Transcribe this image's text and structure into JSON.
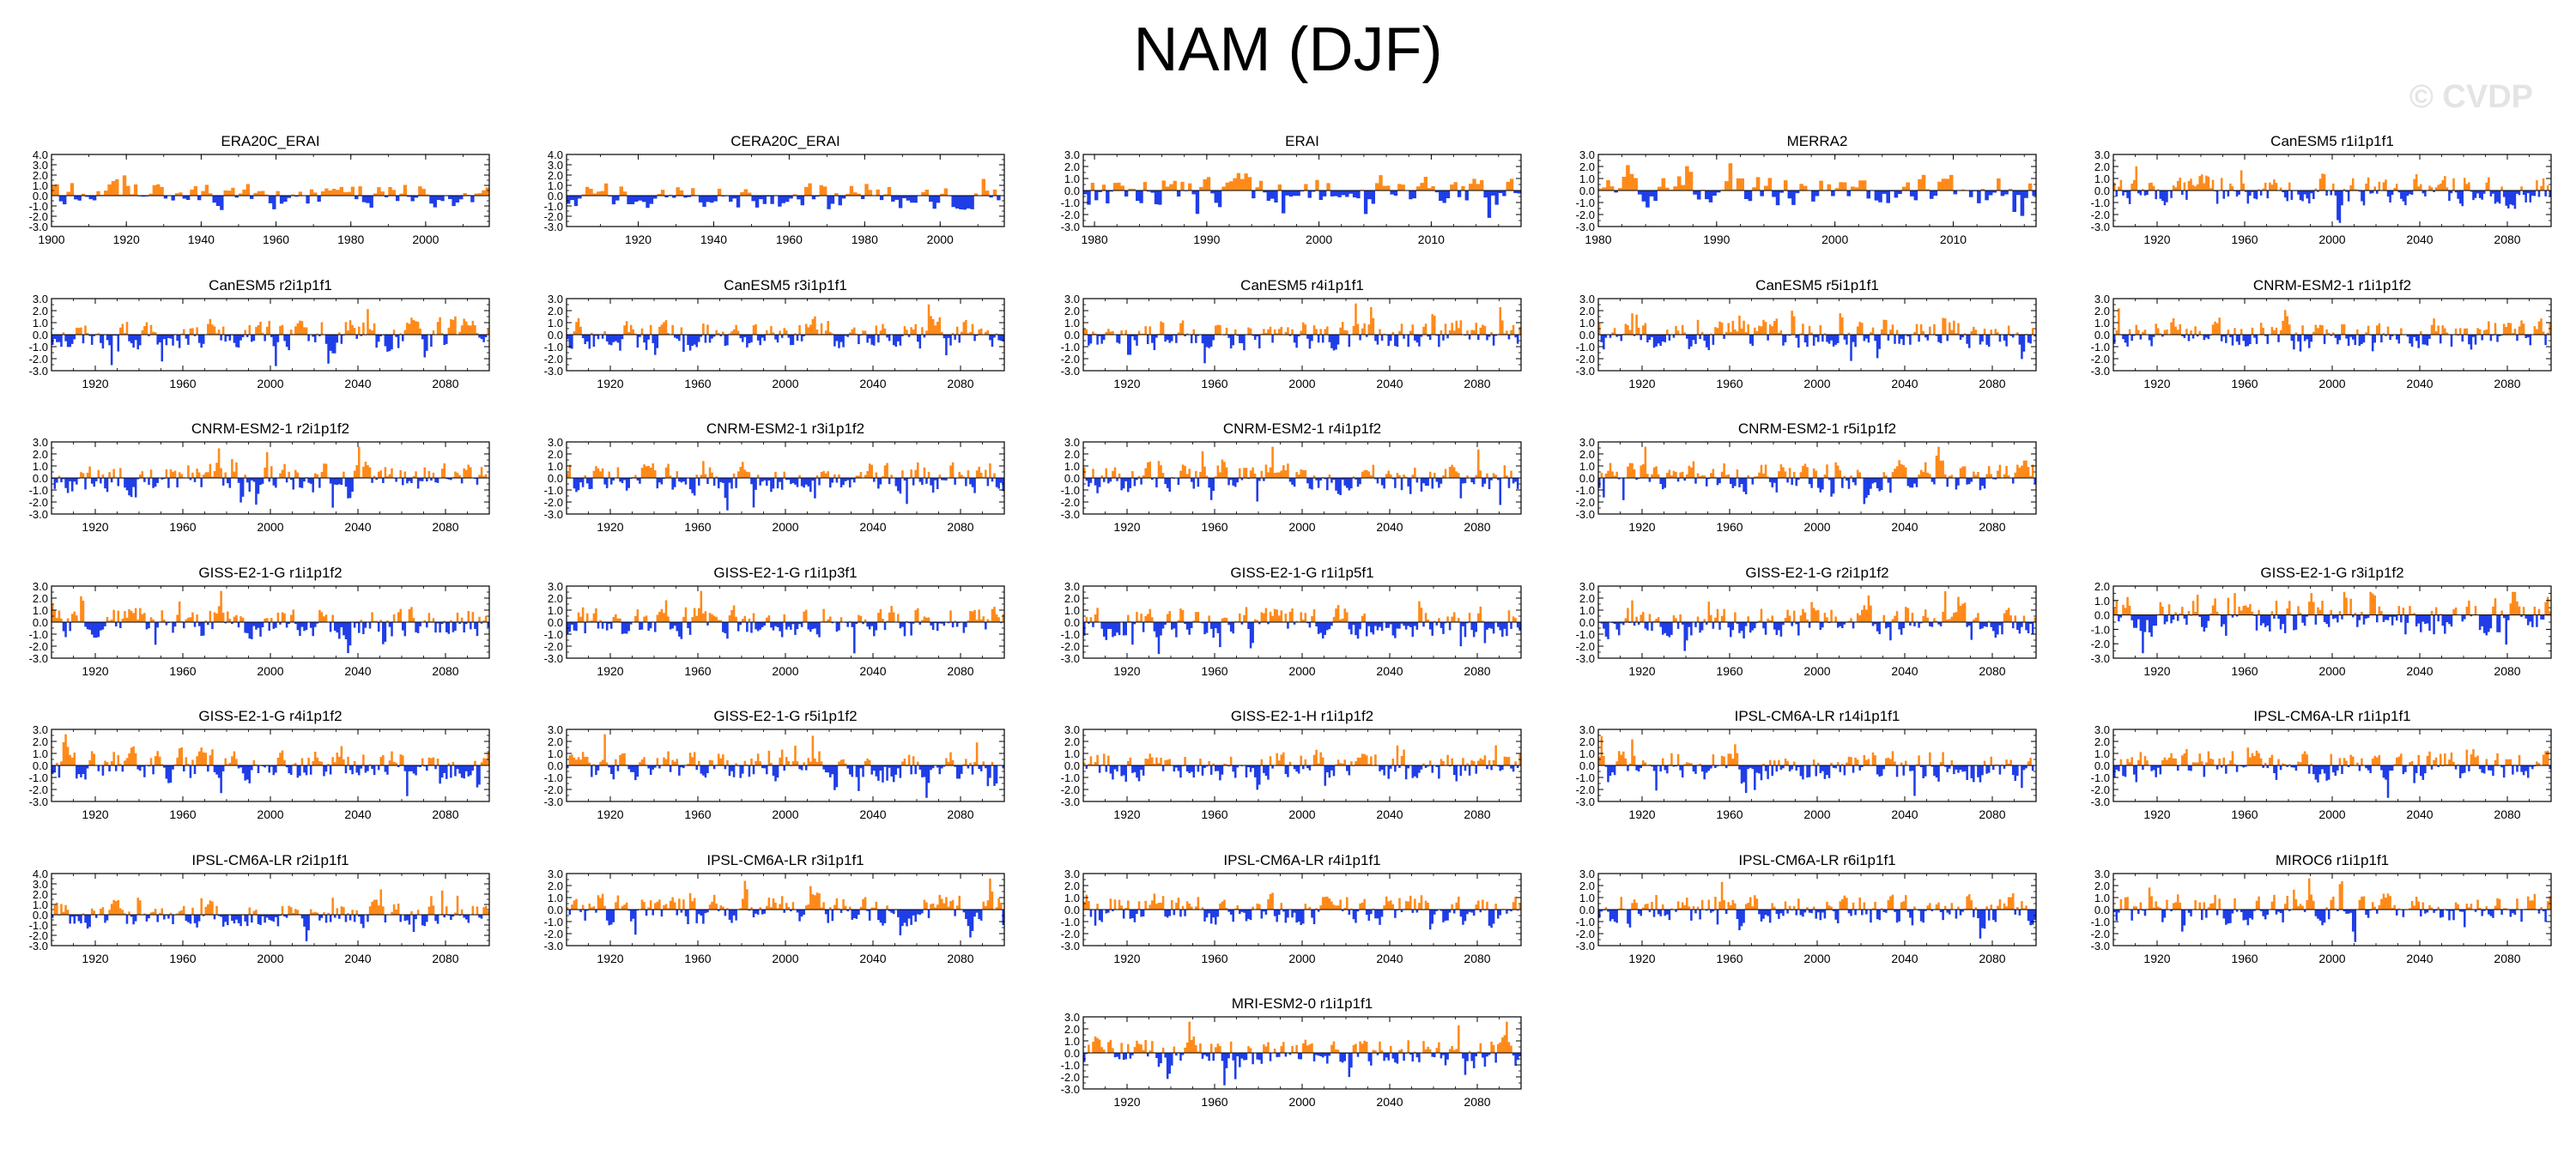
{
  "page": {
    "title": "NAM (DJF)",
    "watermark": "© CVDP"
  },
  "colors": {
    "positive": "#ff8a1a",
    "negative": "#1f3ee8",
    "axis": "#000000"
  },
  "chart_data": [
    {
      "type": "area",
      "title": "ERA20C_ERAI",
      "xlim": [
        1900,
        2017
      ],
      "ylim": [
        -3,
        4
      ],
      "yticks": [
        -3,
        -2,
        -1,
        0,
        1,
        2,
        3,
        4
      ],
      "xticks": [
        1900,
        1920,
        1940,
        1960,
        1980,
        2000
      ],
      "seed": 11
    },
    {
      "type": "area",
      "title": "CERA20C_ERAI",
      "xlim": [
        1901,
        2017
      ],
      "ylim": [
        -3,
        4
      ],
      "yticks": [
        -3,
        -2,
        -1,
        0,
        1,
        2,
        3,
        4
      ],
      "xticks": [
        1920,
        1940,
        1960,
        1980,
        2000
      ],
      "seed": 12
    },
    {
      "type": "area",
      "title": "ERAI",
      "xlim": [
        1979,
        2018
      ],
      "ylim": [
        -3,
        3
      ],
      "yticks": [
        -3,
        -2,
        -1,
        0,
        1,
        2,
        3
      ],
      "xticks": [
        1980,
        1990,
        2000,
        2010
      ],
      "seed": 13
    },
    {
      "type": "area",
      "title": "MERRA2",
      "xlim": [
        1980,
        2017
      ],
      "ylim": [
        -3,
        3
      ],
      "yticks": [
        -3,
        -2,
        -1,
        0,
        1,
        2,
        3
      ],
      "xticks": [
        1980,
        1990,
        2000,
        2010
      ],
      "seed": 14
    },
    {
      "type": "area",
      "title": "CanESM5 r1i1p1f1",
      "xlim": [
        1900,
        2100
      ],
      "ylim": [
        -3,
        3
      ],
      "yticks": [
        -3,
        -2,
        -1,
        0,
        1,
        2,
        3
      ],
      "xticks": [
        1920,
        1960,
        2000,
        2040,
        2080
      ],
      "seed": 15
    },
    {
      "type": "area",
      "title": "CanESM5 r2i1p1f1",
      "xlim": [
        1900,
        2100
      ],
      "ylim": [
        -3,
        3
      ],
      "yticks": [
        -3,
        -2,
        -1,
        0,
        1,
        2,
        3
      ],
      "xticks": [
        1920,
        1960,
        2000,
        2040,
        2080
      ],
      "seed": 21
    },
    {
      "type": "area",
      "title": "CanESM5 r3i1p1f1",
      "xlim": [
        1900,
        2100
      ],
      "ylim": [
        -3,
        3
      ],
      "yticks": [
        -3,
        -2,
        -1,
        0,
        1,
        2,
        3
      ],
      "xticks": [
        1920,
        1960,
        2000,
        2040,
        2080
      ],
      "seed": 22
    },
    {
      "type": "area",
      "title": "CanESM5 r4i1p1f1",
      "xlim": [
        1900,
        2100
      ],
      "ylim": [
        -3,
        3
      ],
      "yticks": [
        -3,
        -2,
        -1,
        0,
        1,
        2,
        3
      ],
      "xticks": [
        1920,
        1960,
        2000,
        2040,
        2080
      ],
      "seed": 23
    },
    {
      "type": "area",
      "title": "CanESM5 r5i1p1f1",
      "xlim": [
        1900,
        2100
      ],
      "ylim": [
        -3,
        3
      ],
      "yticks": [
        -3,
        -2,
        -1,
        0,
        1,
        2,
        3
      ],
      "xticks": [
        1920,
        1960,
        2000,
        2040,
        2080
      ],
      "seed": 24
    },
    {
      "type": "area",
      "title": "CNRM-ESM2-1 r1i1p1f2",
      "xlim": [
        1900,
        2100
      ],
      "ylim": [
        -3,
        3
      ],
      "yticks": [
        -3,
        -2,
        -1,
        0,
        1,
        2,
        3
      ],
      "xticks": [
        1920,
        1960,
        2000,
        2040,
        2080
      ],
      "seed": 25
    },
    {
      "type": "area",
      "title": "CNRM-ESM2-1 r2i1p1f2",
      "xlim": [
        1900,
        2100
      ],
      "ylim": [
        -3,
        3
      ],
      "yticks": [
        -3,
        -2,
        -1,
        0,
        1,
        2,
        3
      ],
      "xticks": [
        1920,
        1960,
        2000,
        2040,
        2080
      ],
      "seed": 31
    },
    {
      "type": "area",
      "title": "CNRM-ESM2-1 r3i1p1f2",
      "xlim": [
        1900,
        2100
      ],
      "ylim": [
        -3,
        3
      ],
      "yticks": [
        -3,
        -2,
        -1,
        0,
        1,
        2,
        3
      ],
      "xticks": [
        1920,
        1960,
        2000,
        2040,
        2080
      ],
      "seed": 32
    },
    {
      "type": "area",
      "title": "CNRM-ESM2-1 r4i1p1f2",
      "xlim": [
        1900,
        2100
      ],
      "ylim": [
        -3,
        3
      ],
      "yticks": [
        -3,
        -2,
        -1,
        0,
        1,
        2,
        3
      ],
      "xticks": [
        1920,
        1960,
        2000,
        2040,
        2080
      ],
      "seed": 33
    },
    {
      "type": "area",
      "title": "CNRM-ESM2-1 r5i1p1f2",
      "xlim": [
        1900,
        2100
      ],
      "ylim": [
        -3,
        3
      ],
      "yticks": [
        -3,
        -2,
        -1,
        0,
        1,
        2,
        3
      ],
      "xticks": [
        1920,
        1960,
        2000,
        2040,
        2080
      ],
      "seed": 34
    },
    null,
    {
      "type": "area",
      "title": "GISS-E2-1-G r1i1p1f2",
      "xlim": [
        1900,
        2100
      ],
      "ylim": [
        -3,
        3
      ],
      "yticks": [
        -3,
        -2,
        -1,
        0,
        1,
        2,
        3
      ],
      "xticks": [
        1920,
        1960,
        2000,
        2040,
        2080
      ],
      "seed": 41
    },
    {
      "type": "area",
      "title": "GISS-E2-1-G r1i1p3f1",
      "xlim": [
        1900,
        2100
      ],
      "ylim": [
        -3,
        3
      ],
      "yticks": [
        -3,
        -2,
        -1,
        0,
        1,
        2,
        3
      ],
      "xticks": [
        1920,
        1960,
        2000,
        2040,
        2080
      ],
      "seed": 42
    },
    {
      "type": "area",
      "title": "GISS-E2-1-G r1i1p5f1",
      "xlim": [
        1900,
        2100
      ],
      "ylim": [
        -3,
        3
      ],
      "yticks": [
        -3,
        -2,
        -1,
        0,
        1,
        2,
        3
      ],
      "xticks": [
        1920,
        1960,
        2000,
        2040,
        2080
      ],
      "seed": 43
    },
    {
      "type": "area",
      "title": "GISS-E2-1-G r2i1p1f2",
      "xlim": [
        1900,
        2100
      ],
      "ylim": [
        -3,
        3
      ],
      "yticks": [
        -3,
        -2,
        -1,
        0,
        1,
        2,
        3
      ],
      "xticks": [
        1920,
        1960,
        2000,
        2040,
        2080
      ],
      "seed": 44
    },
    {
      "type": "area",
      "title": "GISS-E2-1-G r3i1p1f2",
      "xlim": [
        1900,
        2100
      ],
      "ylim": [
        -3,
        2
      ],
      "yticks": [
        -3,
        -2,
        -1,
        0,
        1,
        2
      ],
      "xticks": [
        1920,
        1960,
        2000,
        2040,
        2080
      ],
      "seed": 45
    },
    {
      "type": "area",
      "title": "GISS-E2-1-G r4i1p1f2",
      "xlim": [
        1900,
        2100
      ],
      "ylim": [
        -3,
        3
      ],
      "yticks": [
        -3,
        -2,
        -1,
        0,
        1,
        2,
        3
      ],
      "xticks": [
        1920,
        1960,
        2000,
        2040,
        2080
      ],
      "seed": 51
    },
    {
      "type": "area",
      "title": "GISS-E2-1-G r5i1p1f2",
      "xlim": [
        1900,
        2100
      ],
      "ylim": [
        -3,
        3
      ],
      "yticks": [
        -3,
        -2,
        -1,
        0,
        1,
        2,
        3
      ],
      "xticks": [
        1920,
        1960,
        2000,
        2040,
        2080
      ],
      "seed": 52
    },
    {
      "type": "area",
      "title": "GISS-E2-1-H r1i1p1f2",
      "xlim": [
        1900,
        2100
      ],
      "ylim": [
        -3,
        3
      ],
      "yticks": [
        -3,
        -2,
        -1,
        0,
        1,
        2,
        3
      ],
      "xticks": [
        1920,
        1960,
        2000,
        2040,
        2080
      ],
      "seed": 53
    },
    {
      "type": "area",
      "title": "IPSL-CM6A-LR r14i1p1f1",
      "xlim": [
        1900,
        2100
      ],
      "ylim": [
        -3,
        3
      ],
      "yticks": [
        -3,
        -2,
        -1,
        0,
        1,
        2,
        3
      ],
      "xticks": [
        1920,
        1960,
        2000,
        2040,
        2080
      ],
      "seed": 54
    },
    {
      "type": "area",
      "title": "IPSL-CM6A-LR r1i1p1f1",
      "xlim": [
        1900,
        2100
      ],
      "ylim": [
        -3,
        3
      ],
      "yticks": [
        -3,
        -2,
        -1,
        0,
        1,
        2,
        3
      ],
      "xticks": [
        1920,
        1960,
        2000,
        2040,
        2080
      ],
      "seed": 55
    },
    {
      "type": "area",
      "title": "IPSL-CM6A-LR r2i1p1f1",
      "xlim": [
        1900,
        2100
      ],
      "ylim": [
        -3,
        4
      ],
      "yticks": [
        -3,
        -2,
        -1,
        0,
        1,
        2,
        3,
        4
      ],
      "xticks": [
        1920,
        1960,
        2000,
        2040,
        2080
      ],
      "seed": 61
    },
    {
      "type": "area",
      "title": "IPSL-CM6A-LR r3i1p1f1",
      "xlim": [
        1900,
        2100
      ],
      "ylim": [
        -3,
        3
      ],
      "yticks": [
        -3,
        -2,
        -1,
        0,
        1,
        2,
        3
      ],
      "xticks": [
        1920,
        1960,
        2000,
        2040,
        2080
      ],
      "seed": 62
    },
    {
      "type": "area",
      "title": "IPSL-CM6A-LR r4i1p1f1",
      "xlim": [
        1900,
        2100
      ],
      "ylim": [
        -3,
        3
      ],
      "yticks": [
        -3,
        -2,
        -1,
        0,
        1,
        2,
        3
      ],
      "xticks": [
        1920,
        1960,
        2000,
        2040,
        2080
      ],
      "seed": 63
    },
    {
      "type": "area",
      "title": "IPSL-CM6A-LR r6i1p1f1",
      "xlim": [
        1900,
        2100
      ],
      "ylim": [
        -3,
        3
      ],
      "yticks": [
        -3,
        -2,
        -1,
        0,
        1,
        2,
        3
      ],
      "xticks": [
        1920,
        1960,
        2000,
        2040,
        2080
      ],
      "seed": 64
    },
    {
      "type": "area",
      "title": "MIROC6 r1i1p1f1",
      "xlim": [
        1900,
        2100
      ],
      "ylim": [
        -3,
        3
      ],
      "yticks": [
        -3,
        -2,
        -1,
        0,
        1,
        2,
        3
      ],
      "xticks": [
        1920,
        1960,
        2000,
        2040,
        2080
      ],
      "seed": 65
    },
    null,
    null,
    {
      "type": "area",
      "title": "MRI-ESM2-0 r1i1p1f1",
      "xlim": [
        1900,
        2100
      ],
      "ylim": [
        -3,
        3
      ],
      "yticks": [
        -3,
        -2,
        -1,
        0,
        1,
        2,
        3
      ],
      "xticks": [
        1920,
        1960,
        2000,
        2040,
        2080
      ],
      "seed": 73
    },
    null,
    null
  ]
}
